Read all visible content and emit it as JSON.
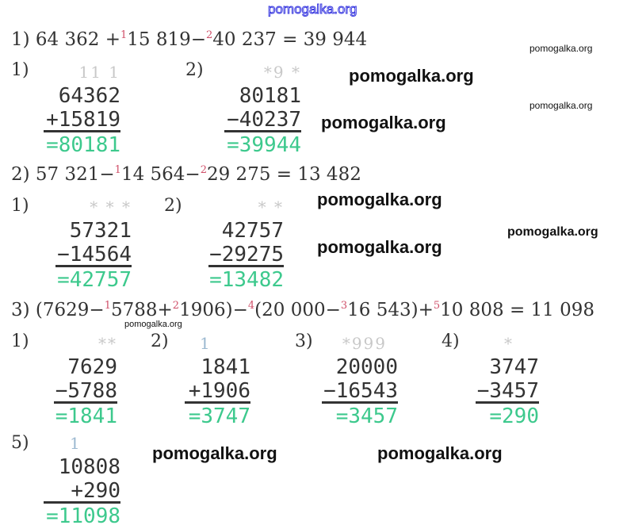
{
  "watermark": "pomogalka.org",
  "colors": {
    "text": "#333333",
    "result": "#3dc98d",
    "order_marks": "#d0506a",
    "carry": "#c8c8c8",
    "watermark_top": "#3b3be0"
  },
  "ex1": {
    "eq": {
      "num": "1)",
      "a": "64 362 +",
      "s1": "1",
      "b": "15 819−",
      "s2": "2",
      "c": "40 237 = 39 944"
    },
    "b1": {
      "label": "1)",
      "carry": "11 1",
      "top": "64362",
      "second": "+15819",
      "result": "=80181"
    },
    "b2": {
      "label": "2)",
      "carry": "*9 *",
      "top": "80181",
      "second": "−40237",
      "result": "=39944"
    }
  },
  "ex2": {
    "eq": {
      "num": "2)",
      "a": "57 321−",
      "s1": "1",
      "b": "14 564−",
      "s2": "2",
      "c": "29 275 = 13 482"
    },
    "b1": {
      "label": "1)",
      "carry": "* * *",
      "top": "57321",
      "second": "−14564",
      "result": "=42757"
    },
    "b2": {
      "label": "2)",
      "carry": "* *",
      "top": "42757",
      "second": "−29275",
      "result": "=13482"
    }
  },
  "ex3": {
    "eq": {
      "num": "3)",
      "a": "(7629−",
      "s1": "1",
      "b": "5788+",
      "s2": "2",
      "c": "1906)−",
      "s4": "4",
      "d": "(20 000−",
      "s3": "3",
      "e": "16 543)+",
      "s5": "5",
      "f": "10 808 = 11 098"
    },
    "b1": {
      "label": "1)",
      "carry": "**",
      "top": "7629",
      "second": "−5788",
      "result": "=1841"
    },
    "b2": {
      "label": "2)",
      "carry": "1",
      "top": "1841",
      "second": "+1906",
      "result": "=3747"
    },
    "b3": {
      "label": "3)",
      "carry": "*999",
      "top": "20000",
      "second": "−16543",
      "result": "=3457"
    },
    "b4": {
      "label": "4)",
      "carry": "*",
      "top": "3747",
      "second": "−3457",
      "result": "=290"
    },
    "b5": {
      "label": "5)",
      "carry": "1",
      "top": "10808",
      "second": "+290",
      "result": "=11098"
    }
  }
}
